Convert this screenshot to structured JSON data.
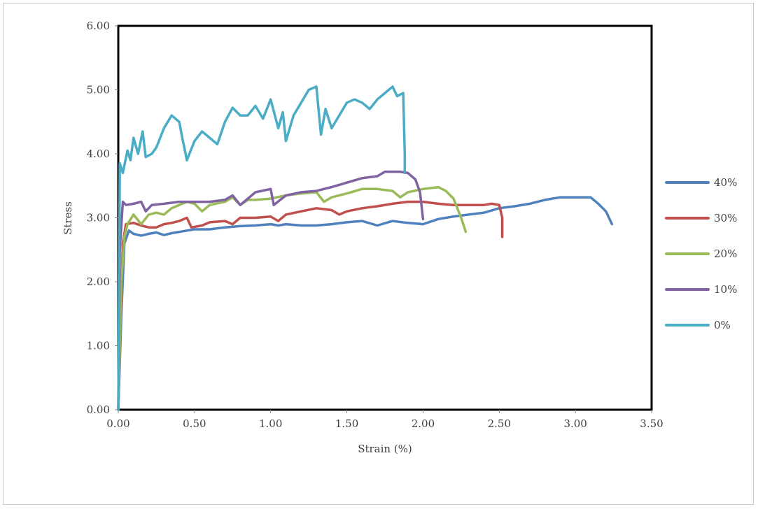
{
  "chart_data": {
    "type": "line",
    "title": "",
    "xlabel": "Strain (%)",
    "ylabel": "Stress",
    "xlim": [
      0,
      3.5
    ],
    "ylim": [
      0,
      6
    ],
    "x_ticks": [
      "0.00",
      "0.50",
      "1.00",
      "1.50",
      "2.00",
      "2.50",
      "3.00",
      "3.50"
    ],
    "y_ticks": [
      "0.00",
      "1.00",
      "2.00",
      "3.00",
      "4.00",
      "5.00",
      "6.00"
    ],
    "grid": false,
    "legend_position": "right",
    "series": [
      {
        "name": "40%",
        "color": "#4f81bd",
        "points": [
          [
            0,
            0
          ],
          [
            0.02,
            1.5
          ],
          [
            0.04,
            2.6
          ],
          [
            0.07,
            2.8
          ],
          [
            0.1,
            2.75
          ],
          [
            0.15,
            2.72
          ],
          [
            0.2,
            2.75
          ],
          [
            0.25,
            2.77
          ],
          [
            0.3,
            2.73
          ],
          [
            0.35,
            2.76
          ],
          [
            0.45,
            2.8
          ],
          [
            0.5,
            2.82
          ],
          [
            0.6,
            2.82
          ],
          [
            0.7,
            2.85
          ],
          [
            0.8,
            2.87
          ],
          [
            0.9,
            2.88
          ],
          [
            1.0,
            2.9
          ],
          [
            1.05,
            2.88
          ],
          [
            1.1,
            2.9
          ],
          [
            1.2,
            2.88
          ],
          [
            1.3,
            2.88
          ],
          [
            1.4,
            2.9
          ],
          [
            1.5,
            2.93
          ],
          [
            1.6,
            2.95
          ],
          [
            1.7,
            2.88
          ],
          [
            1.8,
            2.95
          ],
          [
            1.9,
            2.92
          ],
          [
            2.0,
            2.9
          ],
          [
            2.1,
            2.98
          ],
          [
            2.2,
            3.02
          ],
          [
            2.3,
            3.05
          ],
          [
            2.4,
            3.08
          ],
          [
            2.5,
            3.15
          ],
          [
            2.6,
            3.18
          ],
          [
            2.7,
            3.22
          ],
          [
            2.8,
            3.28
          ],
          [
            2.9,
            3.32
          ],
          [
            3.0,
            3.32
          ],
          [
            3.1,
            3.32
          ],
          [
            3.15,
            3.22
          ],
          [
            3.2,
            3.1
          ],
          [
            3.24,
            2.9
          ]
        ]
      },
      {
        "name": "30%",
        "color": "#c0504d",
        "points": [
          [
            0,
            0
          ],
          [
            0.02,
            1.8
          ],
          [
            0.03,
            2.6
          ],
          [
            0.05,
            2.9
          ],
          [
            0.1,
            2.92
          ],
          [
            0.15,
            2.88
          ],
          [
            0.2,
            2.85
          ],
          [
            0.25,
            2.85
          ],
          [
            0.3,
            2.9
          ],
          [
            0.35,
            2.92
          ],
          [
            0.4,
            2.95
          ],
          [
            0.45,
            3.0
          ],
          [
            0.48,
            2.85
          ],
          [
            0.55,
            2.88
          ],
          [
            0.6,
            2.93
          ],
          [
            0.7,
            2.95
          ],
          [
            0.75,
            2.9
          ],
          [
            0.8,
            3.0
          ],
          [
            0.9,
            3.0
          ],
          [
            1.0,
            3.02
          ],
          [
            1.05,
            2.95
          ],
          [
            1.1,
            3.05
          ],
          [
            1.2,
            3.1
          ],
          [
            1.3,
            3.15
          ],
          [
            1.4,
            3.12
          ],
          [
            1.45,
            3.05
          ],
          [
            1.5,
            3.1
          ],
          [
            1.6,
            3.15
          ],
          [
            1.7,
            3.18
          ],
          [
            1.8,
            3.22
          ],
          [
            1.9,
            3.25
          ],
          [
            2.0,
            3.25
          ],
          [
            2.1,
            3.22
          ],
          [
            2.2,
            3.2
          ],
          [
            2.3,
            3.2
          ],
          [
            2.4,
            3.2
          ],
          [
            2.45,
            3.22
          ],
          [
            2.5,
            3.2
          ],
          [
            2.52,
            3.0
          ],
          [
            2.52,
            2.7
          ]
        ]
      },
      {
        "name": "20%",
        "color": "#9bbb59",
        "points": [
          [
            0,
            0
          ],
          [
            0.02,
            2.0
          ],
          [
            0.04,
            2.7
          ],
          [
            0.06,
            2.9
          ],
          [
            0.1,
            3.05
          ],
          [
            0.15,
            2.9
          ],
          [
            0.2,
            3.05
          ],
          [
            0.25,
            3.08
          ],
          [
            0.3,
            3.05
          ],
          [
            0.35,
            3.15
          ],
          [
            0.4,
            3.2
          ],
          [
            0.45,
            3.25
          ],
          [
            0.5,
            3.22
          ],
          [
            0.55,
            3.1
          ],
          [
            0.6,
            3.2
          ],
          [
            0.7,
            3.25
          ],
          [
            0.75,
            3.32
          ],
          [
            0.8,
            3.2
          ],
          [
            0.85,
            3.28
          ],
          [
            0.9,
            3.28
          ],
          [
            1.0,
            3.3
          ],
          [
            1.1,
            3.35
          ],
          [
            1.2,
            3.38
          ],
          [
            1.3,
            3.4
          ],
          [
            1.35,
            3.25
          ],
          [
            1.4,
            3.32
          ],
          [
            1.5,
            3.38
          ],
          [
            1.6,
            3.45
          ],
          [
            1.7,
            3.45
          ],
          [
            1.8,
            3.42
          ],
          [
            1.85,
            3.32
          ],
          [
            1.9,
            3.4
          ],
          [
            2.0,
            3.45
          ],
          [
            2.1,
            3.48
          ],
          [
            2.15,
            3.42
          ],
          [
            2.2,
            3.3
          ],
          [
            2.25,
            3.0
          ],
          [
            2.28,
            2.78
          ]
        ]
      },
      {
        "name": "10%",
        "color": "#8064a2",
        "points": [
          [
            0,
            0
          ],
          [
            0.01,
            2.5
          ],
          [
            0.03,
            3.25
          ],
          [
            0.05,
            3.2
          ],
          [
            0.1,
            3.22
          ],
          [
            0.15,
            3.25
          ],
          [
            0.18,
            3.1
          ],
          [
            0.22,
            3.2
          ],
          [
            0.3,
            3.22
          ],
          [
            0.4,
            3.25
          ],
          [
            0.5,
            3.25
          ],
          [
            0.6,
            3.25
          ],
          [
            0.7,
            3.28
          ],
          [
            0.75,
            3.35
          ],
          [
            0.8,
            3.2
          ],
          [
            0.85,
            3.3
          ],
          [
            0.9,
            3.4
          ],
          [
            1.0,
            3.45
          ],
          [
            1.02,
            3.2
          ],
          [
            1.1,
            3.35
          ],
          [
            1.2,
            3.4
          ],
          [
            1.3,
            3.42
          ],
          [
            1.35,
            3.45
          ],
          [
            1.4,
            3.48
          ],
          [
            1.5,
            3.55
          ],
          [
            1.6,
            3.62
          ],
          [
            1.7,
            3.65
          ],
          [
            1.75,
            3.72
          ],
          [
            1.85,
            3.72
          ],
          [
            1.9,
            3.7
          ],
          [
            1.95,
            3.6
          ],
          [
            1.98,
            3.4
          ],
          [
            2.0,
            2.98
          ]
        ]
      },
      {
        "name": "0%",
        "color": "#4bacc6",
        "points": [
          [
            0,
            0
          ],
          [
            0.01,
            3.85
          ],
          [
            0.03,
            3.7
          ],
          [
            0.06,
            4.05
          ],
          [
            0.08,
            3.9
          ],
          [
            0.1,
            4.25
          ],
          [
            0.13,
            4.0
          ],
          [
            0.16,
            4.35
          ],
          [
            0.18,
            3.95
          ],
          [
            0.22,
            4.0
          ],
          [
            0.25,
            4.1
          ],
          [
            0.3,
            4.4
          ],
          [
            0.35,
            4.6
          ],
          [
            0.4,
            4.5
          ],
          [
            0.42,
            4.25
          ],
          [
            0.45,
            3.9
          ],
          [
            0.5,
            4.2
          ],
          [
            0.55,
            4.35
          ],
          [
            0.6,
            4.25
          ],
          [
            0.65,
            4.15
          ],
          [
            0.7,
            4.5
          ],
          [
            0.75,
            4.72
          ],
          [
            0.8,
            4.6
          ],
          [
            0.85,
            4.6
          ],
          [
            0.9,
            4.75
          ],
          [
            0.95,
            4.55
          ],
          [
            1.0,
            4.85
          ],
          [
            1.05,
            4.4
          ],
          [
            1.08,
            4.65
          ],
          [
            1.1,
            4.2
          ],
          [
            1.15,
            4.6
          ],
          [
            1.2,
            4.8
          ],
          [
            1.25,
            5.0
          ],
          [
            1.3,
            5.05
          ],
          [
            1.33,
            4.3
          ],
          [
            1.36,
            4.7
          ],
          [
            1.4,
            4.4
          ],
          [
            1.45,
            4.6
          ],
          [
            1.5,
            4.8
          ],
          [
            1.55,
            4.85
          ],
          [
            1.6,
            4.8
          ],
          [
            1.65,
            4.7
          ],
          [
            1.7,
            4.85
          ],
          [
            1.75,
            4.95
          ],
          [
            1.8,
            5.05
          ],
          [
            1.83,
            4.9
          ],
          [
            1.87,
            4.95
          ],
          [
            1.88,
            4.0
          ],
          [
            1.88,
            3.7
          ]
        ]
      }
    ]
  }
}
